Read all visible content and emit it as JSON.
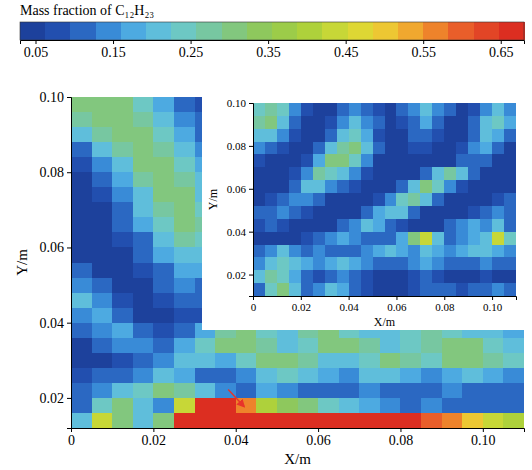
{
  "chart_data": [
    {
      "type": "heatmap",
      "colorbar": {
        "title": "Mass fraction of C₁₂H₂₃",
        "range": [
          0.03,
          0.68
        ],
        "ticks": [
          0.05,
          0.15,
          0.25,
          0.35,
          0.45,
          0.55,
          0.65
        ]
      },
      "xlabel": "X/m",
      "ylabel": "Y/m",
      "xlim": [
        0,
        0.11
      ],
      "ylim": [
        0.012,
        0.1
      ],
      "xticks": [
        0,
        0.02,
        0.04,
        0.06,
        0.08,
        {
          "value": 0.1,
          "label": "0.10"
        }
      ],
      "yticks": [
        0.02,
        0.04,
        0.06,
        0.08,
        {
          "value": 0.1,
          "label": "0.10"
        }
      ],
      "x": [
        0.0025,
        0.0075,
        0.0125,
        0.0175,
        0.0225,
        0.0275,
        0.0325,
        0.0375,
        0.0425,
        0.0475,
        0.0525,
        0.0575,
        0.0625,
        0.0675,
        0.0725,
        0.0775,
        0.0825,
        0.0875,
        0.0925,
        0.0975,
        0.1025,
        0.1075
      ],
      "y": [
        0.098,
        0.094,
        0.09,
        0.086,
        0.082,
        0.078,
        0.074,
        0.07,
        0.066,
        0.062,
        0.058,
        0.054,
        0.05,
        0.046,
        0.042,
        0.038,
        0.034,
        0.03,
        0.026,
        0.022,
        0.018,
        0.014
      ],
      "z": [
        [
          0.3,
          0.32,
          0.3,
          0.25,
          0.18,
          0.12,
          0.08,
          0.15,
          0.2,
          0.15,
          0.1,
          0.08,
          0.1,
          0.15,
          0.2,
          0.15,
          0.1,
          0.08,
          0.1,
          0.15,
          0.1,
          0.08
        ],
        [
          0.28,
          0.3,
          0.32,
          0.28,
          0.2,
          0.14,
          0.1,
          0.18,
          0.22,
          0.18,
          0.12,
          0.08,
          0.12,
          0.18,
          0.22,
          0.18,
          0.12,
          0.08,
          0.12,
          0.18,
          0.12,
          0.08
        ],
        [
          0.2,
          0.28,
          0.3,
          0.3,
          0.24,
          0.16,
          0.12,
          0.2,
          0.25,
          0.2,
          0.14,
          0.1,
          0.14,
          0.2,
          0.24,
          0.2,
          0.14,
          0.1,
          0.14,
          0.2,
          0.14,
          0.1
        ],
        [
          0.12,
          0.22,
          0.28,
          0.32,
          0.28,
          0.2,
          0.15,
          0.22,
          0.28,
          0.22,
          0.16,
          0.12,
          0.16,
          0.22,
          0.26,
          0.22,
          0.16,
          0.12,
          0.16,
          0.22,
          0.16,
          0.12
        ],
        [
          0.08,
          0.15,
          0.22,
          0.3,
          0.3,
          0.24,
          0.18,
          0.24,
          0.3,
          0.24,
          0.18,
          0.14,
          0.18,
          0.24,
          0.28,
          0.24,
          0.18,
          0.14,
          0.18,
          0.24,
          0.18,
          0.14
        ],
        [
          0.06,
          0.1,
          0.18,
          0.26,
          0.32,
          0.28,
          0.2,
          0.22,
          0.28,
          0.22,
          0.16,
          0.12,
          0.16,
          0.22,
          0.26,
          0.22,
          0.16,
          0.12,
          0.16,
          0.22,
          0.16,
          0.12
        ],
        [
          0.05,
          0.08,
          0.15,
          0.22,
          0.3,
          0.3,
          0.22,
          0.2,
          0.24,
          0.2,
          0.14,
          0.1,
          0.14,
          0.2,
          0.24,
          0.2,
          0.14,
          0.1,
          0.14,
          0.2,
          0.14,
          0.1
        ],
        [
          0.05,
          0.06,
          0.12,
          0.2,
          0.28,
          0.32,
          0.25,
          0.18,
          0.22,
          0.18,
          0.12,
          0.08,
          0.12,
          0.18,
          0.22,
          0.18,
          0.12,
          0.08,
          0.12,
          0.18,
          0.12,
          0.08
        ],
        [
          0.05,
          0.06,
          0.1,
          0.16,
          0.25,
          0.3,
          0.26,
          0.16,
          0.2,
          0.16,
          0.1,
          0.08,
          0.1,
          0.16,
          0.2,
          0.16,
          0.1,
          0.08,
          0.1,
          0.16,
          0.1,
          0.08
        ],
        [
          0.05,
          0.05,
          0.08,
          0.12,
          0.2,
          0.28,
          0.24,
          0.14,
          0.18,
          0.14,
          0.1,
          0.06,
          0.1,
          0.14,
          0.18,
          0.14,
          0.1,
          0.06,
          0.1,
          0.14,
          0.1,
          0.06
        ],
        [
          0.06,
          0.05,
          0.06,
          0.1,
          0.16,
          0.22,
          0.2,
          0.12,
          0.16,
          0.12,
          0.08,
          0.06,
          0.08,
          0.12,
          0.16,
          0.12,
          0.08,
          0.06,
          0.08,
          0.12,
          0.08,
          0.06
        ],
        [
          0.1,
          0.06,
          0.05,
          0.08,
          0.12,
          0.18,
          0.16,
          0.1,
          0.14,
          0.1,
          0.08,
          0.06,
          0.08,
          0.1,
          0.14,
          0.1,
          0.08,
          0.06,
          0.08,
          0.1,
          0.08,
          0.06
        ],
        [
          0.15,
          0.1,
          0.06,
          0.06,
          0.1,
          0.14,
          0.12,
          0.1,
          0.12,
          0.1,
          0.08,
          0.06,
          0.08,
          0.1,
          0.12,
          0.1,
          0.08,
          0.06,
          0.08,
          0.1,
          0.08,
          0.06
        ],
        [
          0.2,
          0.15,
          0.08,
          0.05,
          0.08,
          0.1,
          0.1,
          0.08,
          0.1,
          0.08,
          0.06,
          0.05,
          0.06,
          0.08,
          0.1,
          0.08,
          0.06,
          0.05,
          0.06,
          0.08,
          0.06,
          0.05
        ],
        [
          0.15,
          0.18,
          0.12,
          0.06,
          0.06,
          0.08,
          0.08,
          0.08,
          0.1,
          0.12,
          0.1,
          0.08,
          0.1,
          0.12,
          0.14,
          0.12,
          0.1,
          0.08,
          0.1,
          0.12,
          0.1,
          0.08
        ],
        [
          0.1,
          0.15,
          0.18,
          0.12,
          0.08,
          0.1,
          0.18,
          0.28,
          0.3,
          0.25,
          0.22,
          0.28,
          0.3,
          0.25,
          0.2,
          0.22,
          0.25,
          0.28,
          0.25,
          0.22,
          0.2,
          0.18
        ],
        [
          0.06,
          0.1,
          0.15,
          0.15,
          0.12,
          0.18,
          0.25,
          0.3,
          0.32,
          0.28,
          0.22,
          0.25,
          0.3,
          0.32,
          0.28,
          0.22,
          0.25,
          0.28,
          0.32,
          0.3,
          0.25,
          0.22
        ],
        [
          0.05,
          0.06,
          0.08,
          0.1,
          0.15,
          0.22,
          0.2,
          0.18,
          0.25,
          0.3,
          0.32,
          0.28,
          0.22,
          0.2,
          0.25,
          0.3,
          0.28,
          0.25,
          0.3,
          0.32,
          0.28,
          0.25
        ],
        [
          0.08,
          0.1,
          0.12,
          0.15,
          0.2,
          0.18,
          0.12,
          0.1,
          0.15,
          0.2,
          0.25,
          0.22,
          0.18,
          0.15,
          0.2,
          0.22,
          0.18,
          0.15,
          0.18,
          0.2,
          0.18,
          0.15
        ],
        [
          0.12,
          0.15,
          0.2,
          0.25,
          0.3,
          0.28,
          0.22,
          0.15,
          0.12,
          0.18,
          0.15,
          0.12,
          0.1,
          0.12,
          0.15,
          0.12,
          0.1,
          0.12,
          0.15,
          0.12,
          0.1,
          0.12
        ],
        [
          0.1,
          0.25,
          0.3,
          0.22,
          0.15,
          0.45,
          0.65,
          0.65,
          0.55,
          0.4,
          0.35,
          0.3,
          0.25,
          0.2,
          0.18,
          0.15,
          0.12,
          0.15,
          0.12,
          0.1,
          0.12,
          0.1
        ],
        [
          0.2,
          0.45,
          0.3,
          0.2,
          0.3,
          0.65,
          0.65,
          0.65,
          0.65,
          0.65,
          0.65,
          0.65,
          0.65,
          0.65,
          0.65,
          0.65,
          0.65,
          0.6,
          0.55,
          0.5,
          0.45,
          0.4
        ]
      ]
    },
    {
      "type": "heatmap",
      "xlabel": "X/m",
      "ylabel": "Y/m",
      "xlim": [
        0,
        0.11
      ],
      "ylim": [
        0.01,
        0.1
      ],
      "xticks": [
        0,
        0.02,
        0.04,
        0.06,
        0.08,
        {
          "value": 0.1,
          "label": "0.10"
        }
      ],
      "yticks": [
        0.02,
        0.04,
        0.06,
        0.08,
        {
          "value": 0.1,
          "label": "0.10"
        }
      ],
      "x": [
        0.0025,
        0.0075,
        0.0125,
        0.0175,
        0.0225,
        0.0275,
        0.0325,
        0.0375,
        0.0425,
        0.0475,
        0.0525,
        0.0575,
        0.0625,
        0.0675,
        0.0725,
        0.0775,
        0.0825,
        0.0875,
        0.0925,
        0.0975,
        0.1025,
        0.1075
      ],
      "y": [
        0.097,
        0.091,
        0.085,
        0.079,
        0.073,
        0.067,
        0.061,
        0.055,
        0.049,
        0.043,
        0.037,
        0.031,
        0.025,
        0.019,
        0.013
      ],
      "z": [
        [
          0.25,
          0.28,
          0.25,
          0.15,
          0.08,
          0.05,
          0.05,
          0.1,
          0.15,
          0.12,
          0.08,
          0.05,
          0.1,
          0.15,
          0.2,
          0.15,
          0.1,
          0.05,
          0.08,
          0.15,
          0.2,
          0.15
        ],
        [
          0.28,
          0.3,
          0.22,
          0.12,
          0.06,
          0.05,
          0.08,
          0.15,
          0.2,
          0.15,
          0.1,
          0.05,
          0.08,
          0.12,
          0.18,
          0.12,
          0.06,
          0.05,
          0.1,
          0.2,
          0.25,
          0.18
        ],
        [
          0.22,
          0.2,
          0.15,
          0.08,
          0.05,
          0.06,
          0.12,
          0.2,
          0.25,
          0.18,
          0.08,
          0.05,
          0.06,
          0.1,
          0.12,
          0.08,
          0.05,
          0.05,
          0.12,
          0.22,
          0.18,
          0.1
        ],
        [
          0.15,
          0.12,
          0.08,
          0.05,
          0.05,
          0.1,
          0.2,
          0.28,
          0.3,
          0.2,
          0.1,
          0.05,
          0.05,
          0.08,
          0.08,
          0.05,
          0.05,
          0.08,
          0.15,
          0.18,
          0.1,
          0.06
        ],
        [
          0.08,
          0.06,
          0.05,
          0.05,
          0.08,
          0.18,
          0.3,
          0.32,
          0.25,
          0.15,
          0.06,
          0.05,
          0.05,
          0.05,
          0.05,
          0.05,
          0.06,
          0.1,
          0.12,
          0.1,
          0.06,
          0.05
        ],
        [
          0.05,
          0.05,
          0.05,
          0.08,
          0.15,
          0.28,
          0.25,
          0.2,
          0.15,
          0.08,
          0.05,
          0.05,
          0.05,
          0.06,
          0.12,
          0.22,
          0.28,
          0.2,
          0.1,
          0.05,
          0.05,
          0.05
        ],
        [
          0.05,
          0.05,
          0.06,
          0.12,
          0.2,
          0.22,
          0.15,
          0.1,
          0.08,
          0.05,
          0.05,
          0.06,
          0.1,
          0.2,
          0.3,
          0.25,
          0.15,
          0.08,
          0.05,
          0.05,
          0.05,
          0.05
        ],
        [
          0.06,
          0.08,
          0.1,
          0.15,
          0.15,
          0.1,
          0.06,
          0.05,
          0.05,
          0.05,
          0.08,
          0.15,
          0.25,
          0.28,
          0.2,
          0.1,
          0.06,
          0.05,
          0.05,
          0.06,
          0.08,
          0.1
        ],
        [
          0.1,
          0.12,
          0.15,
          0.12,
          0.08,
          0.05,
          0.05,
          0.05,
          0.06,
          0.1,
          0.18,
          0.22,
          0.2,
          0.12,
          0.06,
          0.05,
          0.05,
          0.06,
          0.08,
          0.12,
          0.15,
          0.12
        ],
        [
          0.08,
          0.1,
          0.08,
          0.06,
          0.05,
          0.05,
          0.06,
          0.1,
          0.15,
          0.2,
          0.18,
          0.12,
          0.08,
          0.05,
          0.05,
          0.06,
          0.1,
          0.15,
          0.18,
          0.15,
          0.2,
          0.12
        ],
        [
          0.05,
          0.06,
          0.05,
          0.05,
          0.08,
          0.12,
          0.15,
          0.18,
          0.15,
          0.12,
          0.1,
          0.12,
          0.18,
          0.3,
          0.45,
          0.2,
          0.12,
          0.15,
          0.18,
          0.2,
          0.45,
          0.25
        ],
        [
          0.1,
          0.15,
          0.2,
          0.15,
          0.12,
          0.15,
          0.12,
          0.1,
          0.12,
          0.15,
          0.18,
          0.2,
          0.18,
          0.15,
          0.2,
          0.18,
          0.15,
          0.18,
          0.2,
          0.22,
          0.18,
          0.15
        ],
        [
          0.15,
          0.2,
          0.25,
          0.2,
          0.18,
          0.15,
          0.18,
          0.2,
          0.18,
          0.15,
          0.12,
          0.1,
          0.12,
          0.15,
          0.18,
          0.15,
          0.12,
          0.1,
          0.12,
          0.15,
          0.12,
          0.1
        ],
        [
          0.2,
          0.28,
          0.25,
          0.18,
          0.1,
          0.08,
          0.12,
          0.15,
          0.1,
          0.08,
          0.06,
          0.05,
          0.06,
          0.08,
          0.1,
          0.08,
          0.06,
          0.05,
          0.06,
          0.08,
          0.06,
          0.05
        ],
        [
          0.12,
          0.25,
          0.3,
          0.2,
          0.12,
          0.15,
          0.22,
          0.18,
          0.1,
          0.08,
          0.06,
          0.05,
          0.06,
          0.08,
          0.1,
          0.12,
          0.1,
          0.08,
          0.1,
          0.12,
          0.15,
          0.1
        ]
      ]
    }
  ]
}
